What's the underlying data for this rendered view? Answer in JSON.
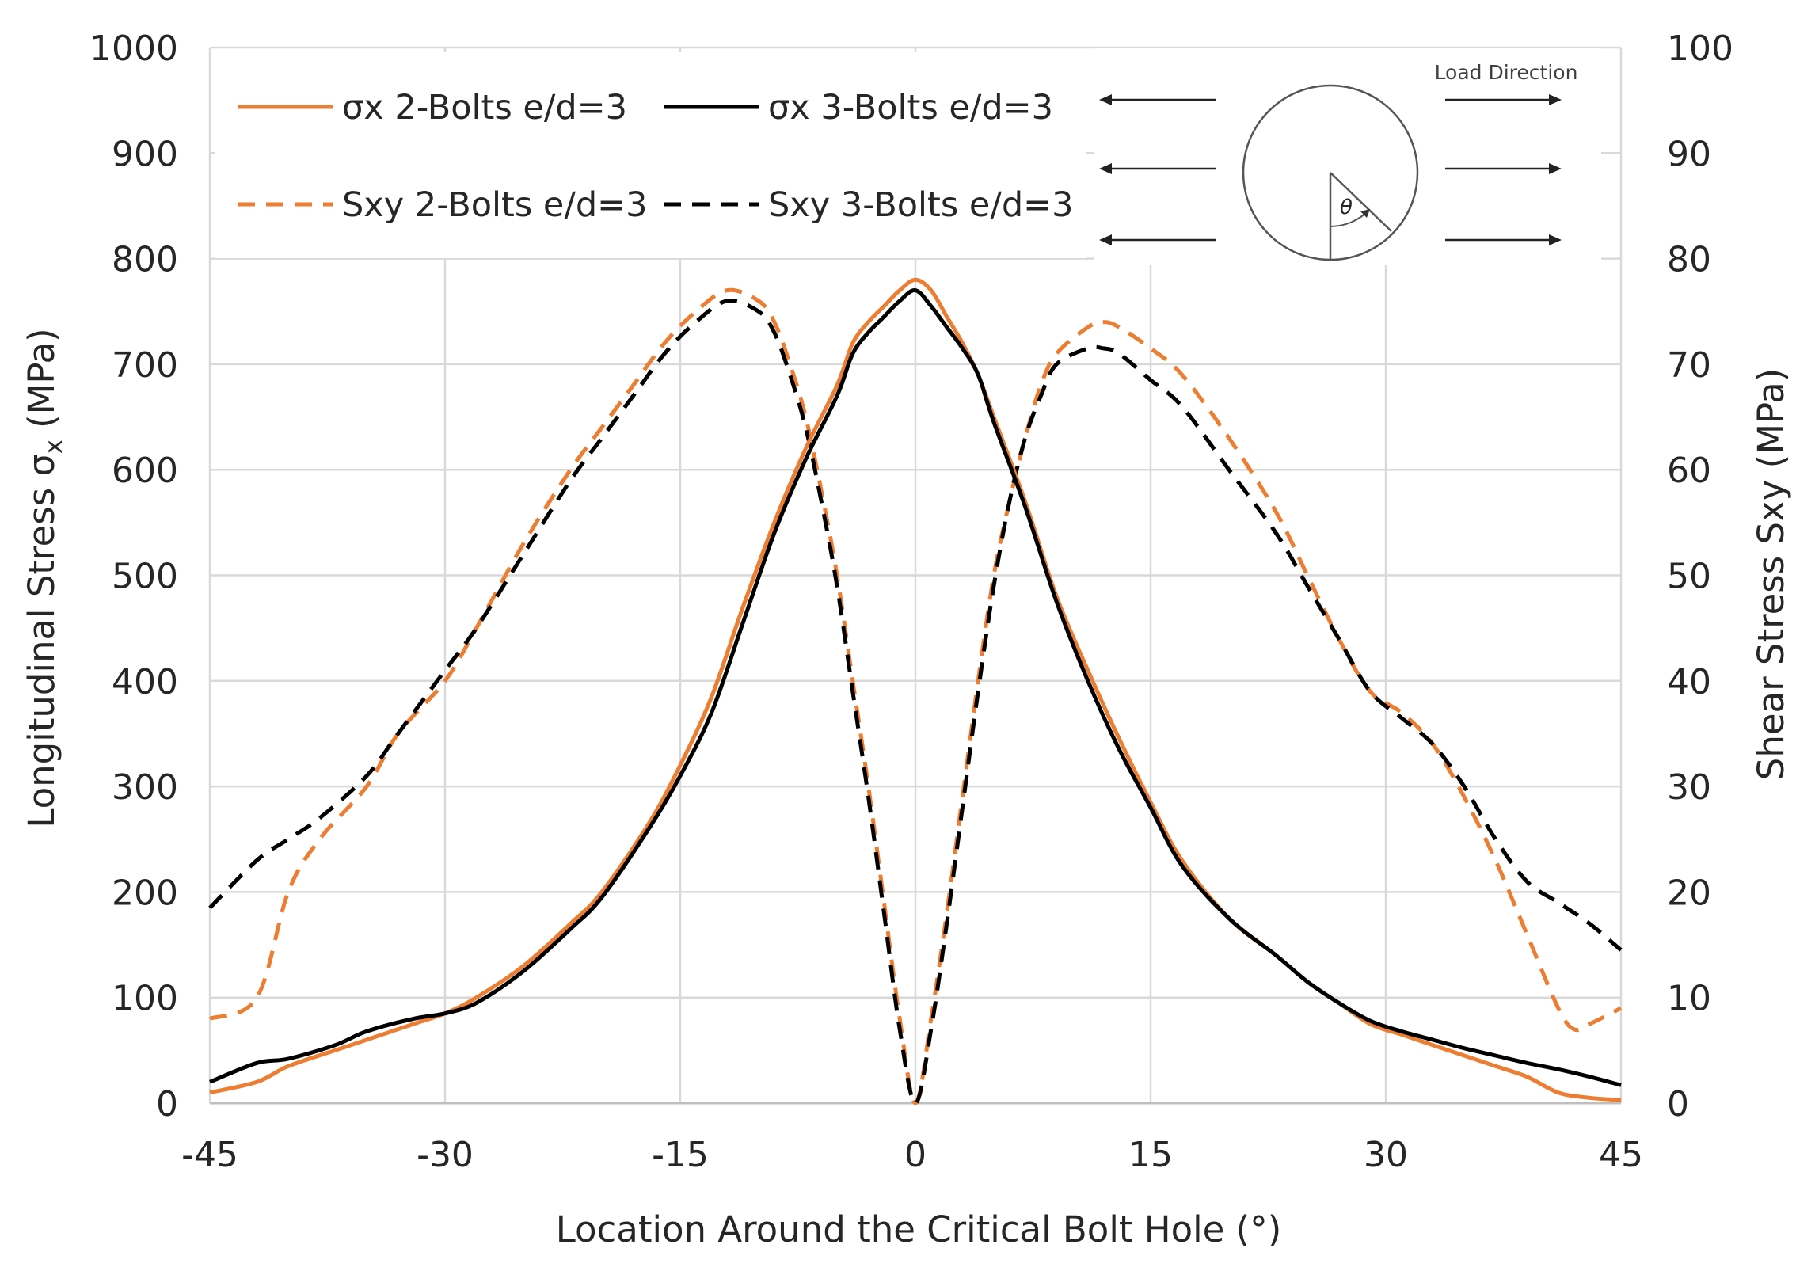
{
  "chart_data": {
    "type": "line",
    "xlabel": "Location Around the Critical Bolt Hole (°)",
    "ylabel_left": "Longitudinal Stress σx (MPa)",
    "ylabel_left_main": "Longitudinal Stress σ",
    "ylabel_left_sub": "x",
    "ylabel_left_unit": " (MPa)",
    "ylabel_right": "Shear Stress Sxy (MPa)",
    "xlim": [
      -45,
      45
    ],
    "ylim_left": [
      0,
      1000
    ],
    "ylim_right": [
      0,
      100
    ],
    "x_ticks": [
      "-45",
      "-30",
      "-15",
      "0",
      "15",
      "30",
      "45"
    ],
    "x_tick_values": [
      -45,
      -30,
      -15,
      0,
      15,
      30,
      45
    ],
    "y_left_ticks": [
      "0",
      "100",
      "200",
      "300",
      "400",
      "500",
      "600",
      "700",
      "800",
      "900",
      "1000"
    ],
    "y_left_tick_values": [
      0,
      100,
      200,
      300,
      400,
      500,
      600,
      700,
      800,
      900,
      1000
    ],
    "y_right_ticks": [
      "0",
      "10",
      "20",
      "30",
      "40",
      "50",
      "60",
      "70",
      "80",
      "90",
      "100"
    ],
    "y_right_tick_values": [
      0,
      10,
      20,
      30,
      40,
      50,
      60,
      70,
      80,
      90,
      100
    ],
    "grid": true,
    "legend_position": "top-left",
    "series": [
      {
        "name": "σx 2-Bolts e/d=3",
        "axis": "left",
        "color": "#ED7D31",
        "dash": "solid",
        "x": [
          -45,
          -42,
          -40,
          -37,
          -35,
          -32,
          -30,
          -28,
          -25,
          -22,
          -20,
          -17,
          -15,
          -13,
          -11,
          -9,
          -7,
          -5,
          -4,
          -3,
          -2,
          -1,
          0,
          1,
          2,
          3,
          4,
          5,
          7,
          9,
          11,
          13,
          15,
          17,
          20,
          23,
          25,
          27,
          29,
          31,
          33,
          35,
          37,
          39,
          41,
          43,
          45
        ],
        "y": [
          10,
          20,
          35,
          50,
          60,
          75,
          85,
          100,
          130,
          170,
          200,
          265,
          320,
          385,
          470,
          550,
          620,
          680,
          720,
          740,
          755,
          770,
          780,
          770,
          745,
          720,
          690,
          650,
          570,
          480,
          410,
          345,
          285,
          230,
          175,
          140,
          115,
          95,
          75,
          65,
          55,
          45,
          35,
          25,
          10,
          5,
          3
        ]
      },
      {
        "name": "σx 3-Bolts e/d=3",
        "axis": "left",
        "color": "#000000",
        "dash": "solid",
        "x": [
          -45,
          -42,
          -40,
          -37,
          -35,
          -32,
          -30,
          -28,
          -25,
          -22,
          -20,
          -17,
          -15,
          -13,
          -11,
          -9,
          -7,
          -5,
          -4,
          -3,
          -2,
          -1,
          0,
          1,
          2,
          3,
          4,
          5,
          7,
          9,
          11,
          13,
          15,
          17,
          20,
          23,
          25,
          27,
          29,
          31,
          33,
          35,
          37,
          39,
          41,
          43,
          45
        ],
        "y": [
          20,
          38,
          42,
          55,
          68,
          80,
          85,
          95,
          125,
          165,
          195,
          260,
          310,
          370,
          455,
          540,
          610,
          670,
          710,
          730,
          745,
          760,
          770,
          755,
          735,
          715,
          690,
          645,
          565,
          475,
          400,
          335,
          280,
          225,
          175,
          140,
          115,
          95,
          78,
          68,
          60,
          52,
          45,
          38,
          32,
          25,
          17
        ]
      },
      {
        "name": "Sxy 2-Bolts e/d=3",
        "axis": "right",
        "color": "#ED7D31",
        "dash": "dashed",
        "x": [
          -45,
          -42,
          -40,
          -38,
          -35,
          -33,
          -30,
          -28,
          -25,
          -22,
          -20,
          -18,
          -16,
          -14,
          -12,
          -10,
          -9,
          -8,
          -7,
          -6,
          -5,
          -4,
          -3,
          -2,
          -1,
          0,
          1,
          2,
          3,
          4,
          5,
          6,
          7,
          8,
          9,
          11,
          12,
          13,
          15,
          17,
          20,
          23,
          25,
          27,
          29,
          31,
          33,
          35,
          37,
          39,
          41,
          42,
          43,
          45
        ],
        "y": [
          8,
          10,
          20,
          25,
          30,
          35,
          40,
          45,
          53,
          60,
          64,
          68,
          72,
          75,
          77,
          76,
          74,
          70,
          65,
          58,
          50,
          40,
          30,
          19,
          8,
          0,
          8,
          18,
          29,
          40,
          50,
          57,
          63,
          68,
          71,
          73.5,
          74,
          73.5,
          71.5,
          69,
          63,
          56,
          50,
          44,
          39,
          37,
          34,
          29,
          23,
          16,
          9,
          7,
          7.5,
          9
        ]
      },
      {
        "name": "Sxy 3-Bolts e/d=3",
        "axis": "right",
        "color": "#000000",
        "dash": "dashed",
        "x": [
          -45,
          -42,
          -40,
          -38,
          -35,
          -33,
          -30,
          -28,
          -25,
          -22,
          -20,
          -18,
          -16,
          -14,
          -12,
          -10,
          -9,
          -8,
          -7,
          -6,
          -5,
          -4,
          -3,
          -2,
          -1,
          0,
          1,
          2,
          3,
          4,
          5,
          6,
          7,
          8,
          9,
          11,
          12,
          13,
          15,
          17,
          20,
          23,
          25,
          27,
          29,
          31,
          33,
          35,
          37,
          39,
          41,
          43,
          45
        ],
        "y": [
          18.5,
          23,
          25,
          27,
          31,
          35,
          41,
          45,
          52,
          59,
          63,
          67,
          71,
          74,
          76,
          75,
          73,
          69,
          64,
          57,
          49,
          39,
          29,
          18,
          7,
          0,
          7,
          17,
          28,
          39,
          49,
          57,
          63,
          67,
          70,
          71.5,
          71.5,
          71,
          68.5,
          66,
          60,
          54,
          49,
          44,
          39,
          36.5,
          34,
          30,
          25,
          21,
          19,
          17,
          14.5
        ]
      }
    ],
    "legend": [
      {
        "label": "σx 2-Bolts e/d=3",
        "color": "#ED7D31",
        "dash": "solid"
      },
      {
        "label": "σx 3-Bolts e/d=3",
        "color": "#000000",
        "dash": "solid"
      },
      {
        "label": "Sxy 2-Bolts e/d=3",
        "color": "#ED7D31",
        "dash": "dashed"
      },
      {
        "label": "Sxy 3-Bolts e/d=3",
        "color": "#000000",
        "dash": "dashed"
      }
    ],
    "inset": {
      "title": "Load Direction",
      "angle_symbol": "θ"
    }
  }
}
